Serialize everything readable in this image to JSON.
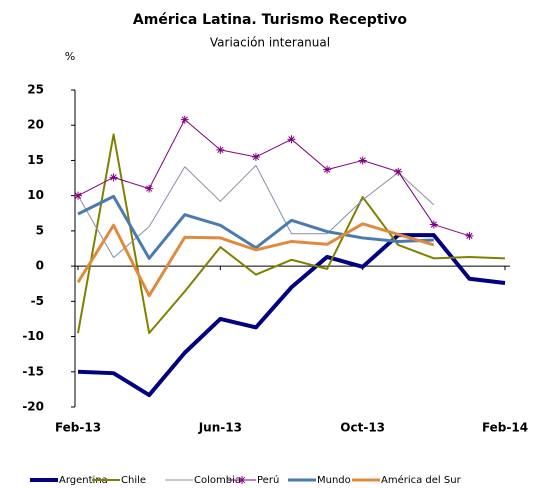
{
  "chart_data": {
    "type": "line",
    "title": "América Latina. Turismo Receptivo",
    "subtitle": "Variación interanual",
    "y_unit": "%",
    "categories": [
      "Feb-13",
      null,
      null,
      null,
      "Jun-13",
      null,
      null,
      null,
      "Oct-13",
      null,
      null,
      null,
      "Feb-14"
    ],
    "ylim": [
      -20,
      25
    ],
    "yticks": [
      -20,
      -15,
      -10,
      -5,
      0,
      5,
      10,
      15,
      20,
      25
    ],
    "grid": false,
    "legend": "bottom",
    "series": [
      {
        "name": "Argentina",
        "color": "#000080",
        "values": [
          -15,
          -15.2,
          -18.3,
          -12.3,
          -7.5,
          -8.7,
          -3,
          1.3,
          -0.1,
          4.4,
          4.4,
          -1.8,
          -2.4
        ]
      },
      {
        "name": "Chile",
        "color": "#808000",
        "values": [
          -9.5,
          18.7,
          -9.5,
          -3.6,
          2.7,
          -1.2,
          0.9,
          -0.4,
          9.8,
          3.0,
          1.1,
          1.3,
          1.1
        ]
      },
      {
        "name": "Colombia",
        "color": "#8c8ca8",
        "values": [
          10,
          1.2,
          5.6,
          14.1,
          9.2,
          14.3,
          4.6,
          4.6,
          9.4,
          13.3,
          8.7,
          null,
          null
        ]
      },
      {
        "name": "Perú",
        "color": "#800080",
        "marker": "star",
        "values": [
          10,
          12.6,
          11,
          20.8,
          16.5,
          15.5,
          18,
          13.7,
          15,
          13.4,
          5.9,
          4.3,
          null
        ]
      },
      {
        "name": "Mundo",
        "color": "#4a7bb0",
        "values": [
          7.4,
          9.9,
          1.1,
          7.3,
          5.8,
          2.6,
          6.5,
          4.9,
          4,
          3.5,
          3.7,
          null,
          null
        ]
      },
      {
        "name": "América del Sur",
        "color": "#e08a3c",
        "values": [
          -2.3,
          5.8,
          -4.2,
          4.1,
          4,
          2.3,
          3.5,
          3.1,
          6,
          4.5,
          3,
          null,
          null
        ]
      }
    ]
  }
}
